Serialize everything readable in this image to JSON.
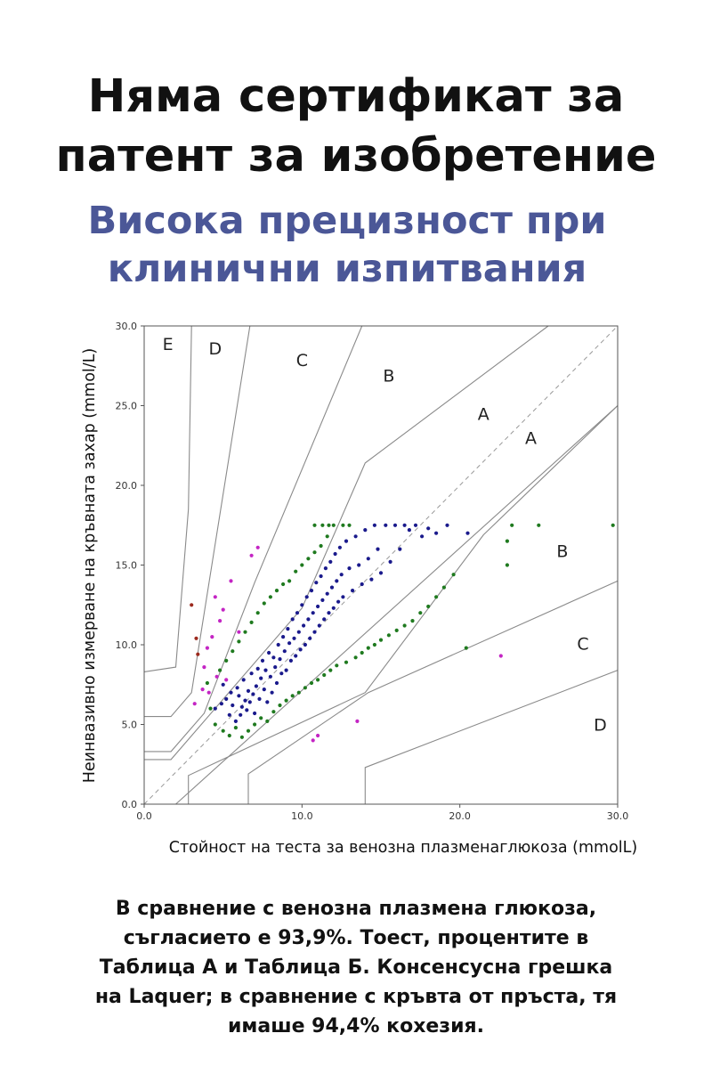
{
  "header": {
    "title_line1": "Няма сертификат за",
    "title_line2": "патент за изобретение",
    "subtitle_line1": "Висока прецизност при",
    "subtitle_line2": "клинични изпитвания"
  },
  "caption_lines": [
    "В сравнение с венозна плазмена глюкоза,",
    "съгласието е 93,9%. Тоест, процентите в",
    "Таблица А и Таблица Б. Консенсусна грешка",
    "на Laquer; в сравнение с кръвта от пръста, тя",
    "имаше 94,4% кохезия."
  ],
  "colors": {
    "title": "#111111",
    "subtitle": "#4b5797",
    "zone_A": "#1a1a8c",
    "zone_B": "#1f7a1f",
    "zone_C": "#c425c4",
    "zone_D": "#9c2a1e"
  },
  "chart_data": {
    "type": "scatter",
    "title": "",
    "xlabel": "Стойност на теста за венозна плазменаглюкоза (mmolL)",
    "ylabel": "Неинвазивно измерване на кръвната захар (mmol/L)",
    "xlim": [
      0,
      30
    ],
    "ylim": [
      0,
      30
    ],
    "x_ticks": [
      "0.0",
      "10.0",
      "20.0",
      "30.0"
    ],
    "y_ticks": [
      "0.0",
      "5.0",
      "10.0",
      "15.0",
      "20.0",
      "25.0",
      "30.0"
    ],
    "grid": false,
    "identity_line": true,
    "zone_labels": [
      {
        "text": "E",
        "x": 1.5,
        "y": 28.5
      },
      {
        "text": "D",
        "x": 4.5,
        "y": 28.2
      },
      {
        "text": "C",
        "x": 10,
        "y": 27.5
      },
      {
        "text": "B",
        "x": 15.5,
        "y": 26.5
      },
      {
        "text": "A",
        "x": 21.5,
        "y": 24.1
      },
      {
        "text": "A",
        "x": 24.5,
        "y": 22.6
      },
      {
        "text": "B",
        "x": 26.5,
        "y": 15.5
      },
      {
        "text": "C",
        "x": 27.8,
        "y": 9.7
      },
      {
        "text": "D",
        "x": 28.9,
        "y": 4.6
      }
    ],
    "zone_lines": [
      [
        [
          0,
          8.3
        ],
        [
          2,
          8.6
        ],
        [
          2.8,
          18.5
        ],
        [
          3.0,
          30
        ]
      ],
      [
        [
          0,
          5.5
        ],
        [
          1.7,
          5.5
        ],
        [
          3.0,
          7.0
        ],
        [
          6.7,
          30
        ]
      ],
      [
        [
          0,
          3.3
        ],
        [
          1.7,
          3.3
        ],
        [
          3.8,
          5.7
        ],
        [
          7.0,
          13.9
        ],
        [
          13.8,
          30
        ]
      ],
      [
        [
          0,
          2.8
        ],
        [
          1.7,
          2.8
        ],
        [
          10.0,
          12.3
        ],
        [
          14.0,
          21.4
        ],
        [
          25.6,
          30
        ]
      ],
      [
        [
          2.0,
          0
        ],
        [
          30,
          25.0
        ]
      ],
      [
        [
          2.8,
          0
        ],
        [
          2.8,
          1.8
        ],
        [
          14.0,
          7.0
        ],
        [
          21.5,
          16.9
        ],
        [
          30,
          25.0
        ]
      ],
      [
        [
          6.6,
          0
        ],
        [
          6.6,
          1.9
        ],
        [
          14.2,
          7.0
        ],
        [
          30,
          14.0
        ]
      ],
      [
        [
          14.0,
          0
        ],
        [
          14.0,
          2.3
        ],
        [
          30,
          8.4
        ]
      ]
    ],
    "series": [
      {
        "zone": "A",
        "points": [
          [
            4.5,
            6.0
          ],
          [
            4.9,
            6.3
          ],
          [
            5.0,
            7.5
          ],
          [
            5.2,
            6.6
          ],
          [
            5.4,
            5.6
          ],
          [
            5.5,
            7.0
          ],
          [
            5.6,
            6.2
          ],
          [
            5.8,
            5.2
          ],
          [
            5.9,
            7.3
          ],
          [
            6.0,
            6.8
          ],
          [
            6.1,
            5.6
          ],
          [
            6.2,
            6.1
          ],
          [
            6.3,
            7.8
          ],
          [
            6.4,
            6.5
          ],
          [
            6.5,
            5.9
          ],
          [
            6.6,
            7.1
          ],
          [
            6.7,
            6.4
          ],
          [
            6.8,
            8.2
          ],
          [
            6.9,
            6.9
          ],
          [
            7.0,
            5.7
          ],
          [
            7.1,
            7.4
          ],
          [
            7.2,
            8.5
          ],
          [
            7.3,
            6.6
          ],
          [
            7.4,
            7.9
          ],
          [
            7.5,
            9.0
          ],
          [
            7.6,
            7.2
          ],
          [
            7.7,
            8.4
          ],
          [
            7.8,
            6.4
          ],
          [
            7.9,
            9.5
          ],
          [
            8.0,
            8.0
          ],
          [
            8.1,
            7.0
          ],
          [
            8.2,
            9.2
          ],
          [
            8.3,
            8.6
          ],
          [
            8.4,
            7.6
          ],
          [
            8.5,
            10.0
          ],
          [
            8.6,
            9.1
          ],
          [
            8.7,
            8.2
          ],
          [
            8.8,
            10.5
          ],
          [
            8.9,
            9.6
          ],
          [
            9.0,
            8.4
          ],
          [
            9.1,
            11.0
          ],
          [
            9.2,
            10.1
          ],
          [
            9.3,
            9.0
          ],
          [
            9.4,
            11.6
          ],
          [
            9.5,
            10.4
          ],
          [
            9.6,
            9.3
          ],
          [
            9.7,
            12.0
          ],
          [
            9.8,
            10.8
          ],
          [
            9.9,
            9.7
          ],
          [
            10.0,
            12.5
          ],
          [
            10.1,
            11.2
          ],
          [
            10.2,
            10.0
          ],
          [
            10.3,
            13.0
          ],
          [
            10.4,
            11.6
          ],
          [
            10.5,
            10.4
          ],
          [
            10.6,
            13.4
          ],
          [
            10.7,
            12.0
          ],
          [
            10.8,
            10.8
          ],
          [
            10.9,
            13.9
          ],
          [
            11.0,
            12.4
          ],
          [
            11.1,
            11.2
          ],
          [
            11.2,
            14.3
          ],
          [
            11.3,
            12.8
          ],
          [
            11.4,
            11.6
          ],
          [
            11.5,
            14.8
          ],
          [
            11.6,
            13.2
          ],
          [
            11.7,
            12.0
          ],
          [
            11.8,
            15.2
          ],
          [
            11.9,
            13.6
          ],
          [
            12.0,
            12.3
          ],
          [
            12.1,
            15.7
          ],
          [
            12.2,
            14.0
          ],
          [
            12.3,
            12.7
          ],
          [
            12.4,
            16.1
          ],
          [
            12.5,
            14.4
          ],
          [
            12.6,
            13.0
          ],
          [
            12.8,
            16.5
          ],
          [
            13.0,
            14.8
          ],
          [
            13.2,
            13.4
          ],
          [
            13.4,
            16.8
          ],
          [
            13.6,
            15.0
          ],
          [
            13.8,
            13.8
          ],
          [
            14.0,
            17.2
          ],
          [
            14.2,
            15.4
          ],
          [
            14.4,
            14.1
          ],
          [
            14.6,
            17.5
          ],
          [
            14.8,
            16.0
          ],
          [
            15.0,
            14.5
          ],
          [
            15.3,
            17.5
          ],
          [
            15.6,
            15.2
          ],
          [
            15.9,
            17.5
          ],
          [
            16.2,
            16.0
          ],
          [
            16.5,
            17.5
          ],
          [
            16.8,
            17.2
          ],
          [
            17.2,
            17.5
          ],
          [
            17.6,
            16.8
          ],
          [
            18.0,
            17.3
          ],
          [
            18.5,
            17.0
          ],
          [
            19.2,
            17.5
          ],
          [
            20.5,
            17.0
          ]
        ]
      },
      {
        "zone": "B",
        "points": [
          [
            4.0,
            7.6
          ],
          [
            4.2,
            6.0
          ],
          [
            4.5,
            5.0
          ],
          [
            4.8,
            8.4
          ],
          [
            5.0,
            4.6
          ],
          [
            5.2,
            9.0
          ],
          [
            5.4,
            4.3
          ],
          [
            5.6,
            9.6
          ],
          [
            5.8,
            4.8
          ],
          [
            6.0,
            10.2
          ],
          [
            6.2,
            4.2
          ],
          [
            6.4,
            10.8
          ],
          [
            6.6,
            4.6
          ],
          [
            6.8,
            11.4
          ],
          [
            7.0,
            5.0
          ],
          [
            7.2,
            12.0
          ],
          [
            7.4,
            5.4
          ],
          [
            7.6,
            12.6
          ],
          [
            7.8,
            5.2
          ],
          [
            8.0,
            13.0
          ],
          [
            8.2,
            5.8
          ],
          [
            8.4,
            13.4
          ],
          [
            8.6,
            6.2
          ],
          [
            8.8,
            13.8
          ],
          [
            9.0,
            6.5
          ],
          [
            9.2,
            14.0
          ],
          [
            9.4,
            6.8
          ],
          [
            9.6,
            14.6
          ],
          [
            9.8,
            7.0
          ],
          [
            10.0,
            15.0
          ],
          [
            10.2,
            7.3
          ],
          [
            10.4,
            15.4
          ],
          [
            10.6,
            7.6
          ],
          [
            10.8,
            15.8
          ],
          [
            11.0,
            7.8
          ],
          [
            11.2,
            16.2
          ],
          [
            11.4,
            8.1
          ],
          [
            11.6,
            16.8
          ],
          [
            11.8,
            8.4
          ],
          [
            12.0,
            17.5
          ],
          [
            12.2,
            8.7
          ],
          [
            12.6,
            17.5
          ],
          [
            12.8,
            8.9
          ],
          [
            13.0,
            17.5
          ],
          [
            13.4,
            9.2
          ],
          [
            13.8,
            9.5
          ],
          [
            14.2,
            9.8
          ],
          [
            14.6,
            10.0
          ],
          [
            15.0,
            10.3
          ],
          [
            15.5,
            10.6
          ],
          [
            16.0,
            10.9
          ],
          [
            16.5,
            11.2
          ],
          [
            17.0,
            11.5
          ],
          [
            17.5,
            12.0
          ],
          [
            18.0,
            12.4
          ],
          [
            18.5,
            13.0
          ],
          [
            19.0,
            13.6
          ],
          [
            19.6,
            14.4
          ],
          [
            20.4,
            9.8
          ],
          [
            23.0,
            16.5
          ],
          [
            23.0,
            15.0
          ],
          [
            23.3,
            17.5
          ],
          [
            25.0,
            17.5
          ],
          [
            29.7,
            17.5
          ],
          [
            11.3,
            17.5
          ],
          [
            11.7,
            17.5
          ],
          [
            10.8,
            17.5
          ]
        ]
      },
      {
        "zone": "C",
        "points": [
          [
            3.7,
            7.2
          ],
          [
            3.8,
            8.6
          ],
          [
            4.0,
            9.8
          ],
          [
            4.1,
            7.0
          ],
          [
            4.3,
            10.5
          ],
          [
            4.5,
            13.0
          ],
          [
            4.6,
            8.0
          ],
          [
            4.8,
            11.5
          ],
          [
            5.0,
            12.2
          ],
          [
            5.2,
            7.8
          ],
          [
            5.5,
            14.0
          ],
          [
            6.0,
            10.8
          ],
          [
            6.8,
            15.6
          ],
          [
            7.2,
            16.1
          ],
          [
            3.2,
            6.3
          ],
          [
            10.7,
            4.0
          ],
          [
            11.0,
            4.3
          ],
          [
            13.5,
            5.2
          ],
          [
            22.6,
            9.3
          ]
        ]
      },
      {
        "zone": "D",
        "points": [
          [
            3.0,
            12.5
          ],
          [
            3.3,
            10.4
          ],
          [
            3.4,
            9.4
          ]
        ]
      }
    ]
  }
}
